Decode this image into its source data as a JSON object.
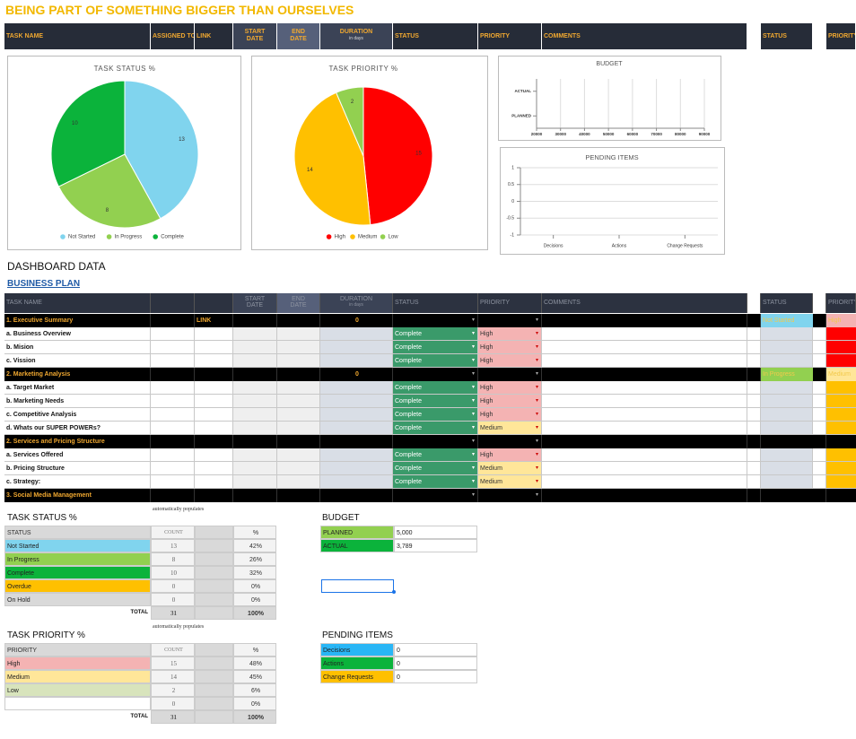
{
  "title": "BEING PART OF SOMETHING BIGGER THAN OURSELVES",
  "header": {
    "columns": [
      "TASK NAME",
      "ASSIGNED TO",
      "LINK",
      "START DATE",
      "END DATE",
      "DURATION",
      "STATUS",
      "PRIORITY",
      "COMMENTS",
      "STATUS",
      "PRIORITY"
    ],
    "duration_note": "in days"
  },
  "chart_data": [
    {
      "type": "pie",
      "title": "TASK STATUS %",
      "categories": [
        "Not Started",
        "In Progress",
        "Complete"
      ],
      "values": [
        13,
        8,
        10
      ],
      "colors": [
        "#80d4ee",
        "#92d050",
        "#0bb33b"
      ],
      "legend": "bottom"
    },
    {
      "type": "pie",
      "title": "TASK PRIORITY %",
      "categories": [
        "High",
        "Medium",
        "Low"
      ],
      "values": [
        15,
        14,
        2
      ],
      "colors": [
        "#ff0000",
        "#ffc000",
        "#92d050"
      ],
      "legend": "bottom"
    },
    {
      "type": "bar",
      "horizontal": true,
      "title": "BUDGET",
      "categories": [
        "ACTUAL",
        "PLANNED"
      ],
      "xlim": [
        20000,
        90000
      ],
      "xticks": [
        20000,
        30000,
        40000,
        50000,
        60000,
        70000,
        80000,
        90000
      ],
      "grid": true
    },
    {
      "type": "bar",
      "title": "PENDING ITEMS",
      "categories": [
        "Decisions",
        "Actions",
        "Change Requests"
      ],
      "values": [
        0,
        0,
        0
      ],
      "color": "#4472c4",
      "ylim": [
        -1,
        1
      ],
      "yticks": [
        1,
        0.5,
        0,
        -0.5,
        -1
      ],
      "grid": true
    }
  ],
  "dashboard": {
    "title": "DASHBOARD DATA",
    "subtitle": "BUSINESS PLAN",
    "header": {
      "columns": [
        "TASK NAME",
        "START DATE",
        "END DATE",
        "DURATION",
        "STATUS",
        "PRIORITY",
        "COMMENTS",
        "STATUS",
        "PRIORITY"
      ],
      "duration_note": "in days"
    },
    "status_colors": {
      "Complete": "#3a9a6a",
      "Not Started": "#80d4ee",
      "In Progress": "#92d050"
    },
    "priority_colors": {
      "High": "#f4b3b3",
      "Medium": "#ffe699"
    },
    "rows": [
      {
        "name": "1. Executive Summary",
        "section": true,
        "link": "LINK",
        "duration": "0",
        "status2": "Not Started",
        "priority2": "High"
      },
      {
        "name": "a. Business Overview",
        "status": "Complete",
        "priority": "High",
        "right_fill": "#ff0000"
      },
      {
        "name": "b. Mision",
        "status": "Complete",
        "priority": "High",
        "right_fill": "#ff0000"
      },
      {
        "name": "c. Vission",
        "status": "Complete",
        "priority": "High",
        "right_fill": "#ff0000"
      },
      {
        "name": "2. Marketing Analysis",
        "section": true,
        "duration": "0",
        "status2": "In Progress",
        "priority2": "Medium"
      },
      {
        "name": "a. Target Market",
        "status": "Complete",
        "priority": "High",
        "right_fill": "#ffc000"
      },
      {
        "name": "b. Marketing Needs",
        "status": "Complete",
        "priority": "High",
        "right_fill": "#ffc000"
      },
      {
        "name": "c. Competitive Analysis",
        "status": "Complete",
        "priority": "High",
        "right_fill": "#ffc000"
      },
      {
        "name": "d. Whats our SUPER POWERs?",
        "status": "Complete",
        "priority": "Medium",
        "right_fill": "#ffc000"
      },
      {
        "name": "2. Services and Pricing Structure",
        "section": true
      },
      {
        "name": "a. Services Offered",
        "status": "Complete",
        "priority": "High",
        "right_fill": "#ffc000"
      },
      {
        "name": "b. Pricing Structure",
        "status": "Complete",
        "priority": "Medium",
        "right_fill": "#ffc000"
      },
      {
        "name": "c. Strategy:",
        "status": "Complete",
        "priority": "Medium",
        "right_fill": "#ffc000"
      },
      {
        "name": "3. Social Media Management",
        "section": true
      }
    ]
  },
  "status_table": {
    "title": "TASK STATUS %",
    "note": "automatically populates",
    "header": [
      "STATUS",
      "COUNT",
      "%"
    ],
    "rows": [
      {
        "label": "Not Started",
        "count": 13,
        "pct": "42%",
        "color": "#80d4ee"
      },
      {
        "label": "In Progress",
        "count": 8,
        "pct": "26%",
        "color": "#92d050"
      },
      {
        "label": "Complete",
        "count": 10,
        "pct": "32%",
        "color": "#0bb33b"
      },
      {
        "label": "Overdue",
        "count": 0,
        "pct": "0%",
        "color": "#ffc000"
      },
      {
        "label": "On Hold",
        "count": 0,
        "pct": "0%",
        "color": "#d9d9d9"
      }
    ],
    "total": {
      "label": "TOTAL",
      "count": 31,
      "pct": "100%"
    }
  },
  "priority_table": {
    "title": "TASK PRIORITY %",
    "note": "automatically populates",
    "header": [
      "PRIORITY",
      "COUNT",
      "%"
    ],
    "rows": [
      {
        "label": "High",
        "count": 15,
        "pct": "48%",
        "color": "#f4b3b3"
      },
      {
        "label": "Medium",
        "count": 14,
        "pct": "45%",
        "color": "#ffe699"
      },
      {
        "label": "Low",
        "count": 2,
        "pct": "6%",
        "color": "#d8e4bc"
      },
      {
        "label": null,
        "count": 0,
        "pct": "0%",
        "color": "#ffffff"
      }
    ],
    "total": {
      "label": "TOTAL",
      "count": 31,
      "pct": "100%"
    }
  },
  "budget_table": {
    "title": "BUDGET",
    "rows": [
      {
        "label": "PLANNED",
        "value": "5,000",
        "color": "#92d050"
      },
      {
        "label": "ACTUAL",
        "value": "3,789",
        "color": "#0bb33b"
      }
    ]
  },
  "pending_table": {
    "title": "PENDING ITEMS",
    "rows": [
      {
        "label": "Decisions",
        "value": 0,
        "color": "#29b6f6"
      },
      {
        "label": "Actions",
        "value": 0,
        "color": "#0bb33b"
      },
      {
        "label": "Change Requests",
        "value": 0,
        "color": "#ffc000"
      }
    ]
  }
}
